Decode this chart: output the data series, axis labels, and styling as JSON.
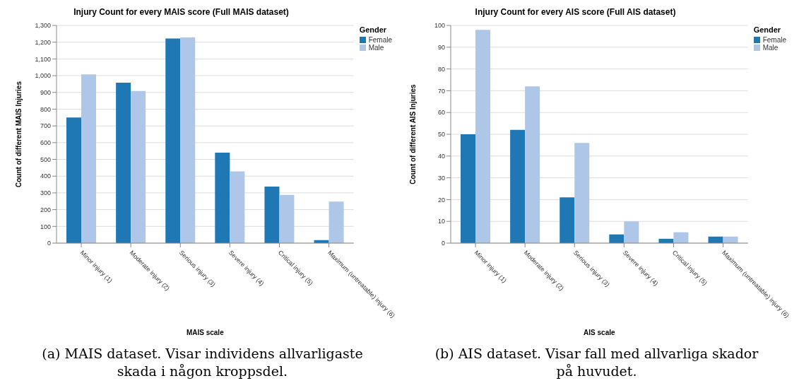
{
  "chart_data": [
    {
      "type": "bar",
      "title": "Injury Count for every MAIS score (Full MAIS dataset)",
      "xlabel": "MAIS scale",
      "ylabel": "Count of different MAIS Injuries",
      "legend_title": "Gender",
      "categories": [
        "Minor injury (1)",
        "Moderate injury (2)",
        "Serious injury (3)",
        "Severe injury (4)",
        "Critical injury (5)",
        "Maximum (untreatable) injury (6)"
      ],
      "series": [
        {
          "name": "Female",
          "color": "#1f77b4",
          "values": [
            750,
            958,
            1222,
            540,
            338,
            18
          ]
        },
        {
          "name": "Male",
          "color": "#aec7e8",
          "values": [
            1008,
            908,
            1228,
            428,
            288,
            248
          ]
        }
      ],
      "ylim": [
        0,
        1300
      ],
      "yticks": [
        0,
        100,
        200,
        300,
        400,
        500,
        600,
        700,
        800,
        900,
        {
          "value": 1000,
          "label": "1,000"
        },
        {
          "value": 1100,
          "label": "1,100"
        },
        {
          "value": 1200,
          "label": "1,200"
        },
        {
          "value": 1300,
          "label": "1,300"
        }
      ],
      "grid": "y",
      "legend": "top right",
      "annotations": [
        "(a) MAIS dataset. Visar individens allvarligaste skada i någon kroppsdel."
      ]
    },
    {
      "type": "bar",
      "title": "Injury Count for every AIS score (Full AIS dataset)",
      "xlabel": "AIS scale",
      "ylabel": "Count of different AIS Injuries",
      "legend_title": "Gender",
      "categories": [
        "Minor injury (1)",
        "Moderate injury (2)",
        "Serious injury (3)",
        "Severe injury (4)",
        "Critical injury (5)",
        "Maximum (untreatable) injury (6)"
      ],
      "series": [
        {
          "name": "Female",
          "color": "#1f77b4",
          "values": [
            50,
            52,
            21,
            4,
            2,
            3
          ]
        },
        {
          "name": "Male",
          "color": "#aec7e8",
          "values": [
            98,
            72,
            46,
            10,
            5,
            3
          ]
        }
      ],
      "ylim": [
        0,
        100
      ],
      "yticks": [
        0,
        10,
        20,
        30,
        40,
        50,
        60,
        70,
        80,
        90,
        100
      ],
      "grid": "y",
      "legend": "top right",
      "annotations": [
        "(b) AIS dataset. Visar fall med allvarliga skador på huvudet."
      ]
    }
  ]
}
